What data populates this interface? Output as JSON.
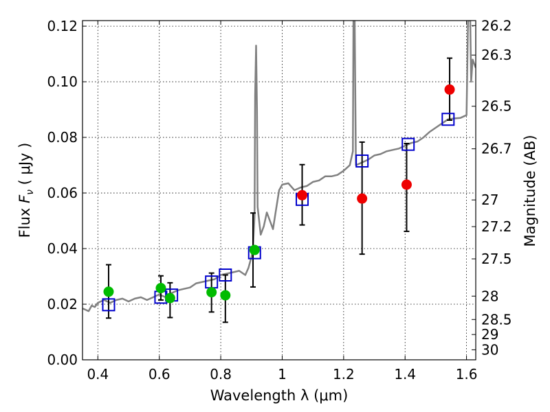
{
  "chart_data": {
    "type": "scatter",
    "xlabel": "Wavelength  λ (μm)",
    "ylabel": "Flux  Fν  ( μJy )",
    "y2label": "Magnitude (AB)",
    "xlim": [
      0.35,
      1.63
    ],
    "ylim": [
      0.0,
      0.122
    ],
    "grid": true,
    "x_ticks": [
      0.4,
      0.6,
      0.8,
      1.0,
      1.2,
      1.4,
      1.6
    ],
    "x_tick_labels": [
      "0.4",
      "0.6",
      "0.8",
      "1",
      "1.2",
      "1.4",
      "1.6"
    ],
    "y_ticks": [
      0.0,
      0.02,
      0.04,
      0.06,
      0.08,
      0.1,
      0.12
    ],
    "y_tick_labels": [
      "0.00",
      "0.02",
      "0.04",
      "0.06",
      "0.08",
      "0.10",
      "0.12"
    ],
    "y2_ticks": [
      {
        "label": "26.2",
        "flux": 0.1202
      },
      {
        "label": "26.3",
        "flux": 0.1096
      },
      {
        "label": "26.5",
        "flux": 0.0912
      },
      {
        "label": "26.7",
        "flux": 0.0759
      },
      {
        "label": "27",
        "flux": 0.0575
      },
      {
        "label": "27.2",
        "flux": 0.0479
      },
      {
        "label": "27.5",
        "flux": 0.0363
      },
      {
        "label": "28",
        "flux": 0.0229
      },
      {
        "label": "28.5",
        "flux": 0.0145
      },
      {
        "label": "29",
        "flux": 0.0091
      },
      {
        "label": "30",
        "flux": 0.0036
      }
    ],
    "series": [
      {
        "kind": "line",
        "color": "#808080",
        "points": [
          [
            0.35,
            0.0185
          ],
          [
            0.36,
            0.018
          ],
          [
            0.37,
            0.0175
          ],
          [
            0.38,
            0.0195
          ],
          [
            0.39,
            0.019
          ],
          [
            0.4,
            0.0205
          ],
          [
            0.42,
            0.0215
          ],
          [
            0.44,
            0.0205
          ],
          [
            0.46,
            0.0215
          ],
          [
            0.48,
            0.022
          ],
          [
            0.5,
            0.021
          ],
          [
            0.52,
            0.022
          ],
          [
            0.54,
            0.0225
          ],
          [
            0.56,
            0.0215
          ],
          [
            0.58,
            0.0225
          ],
          [
            0.6,
            0.0235
          ],
          [
            0.62,
            0.0225
          ],
          [
            0.64,
            0.024
          ],
          [
            0.66,
            0.025
          ],
          [
            0.68,
            0.0255
          ],
          [
            0.7,
            0.026
          ],
          [
            0.72,
            0.0275
          ],
          [
            0.74,
            0.028
          ],
          [
            0.76,
            0.0285
          ],
          [
            0.78,
            0.029
          ],
          [
            0.8,
            0.0305
          ],
          [
            0.82,
            0.031
          ],
          [
            0.84,
            0.0315
          ],
          [
            0.86,
            0.032
          ],
          [
            0.88,
            0.0305
          ],
          [
            0.89,
            0.033
          ],
          [
            0.9,
            0.037
          ],
          [
            0.905,
            0.04
          ],
          [
            0.91,
            0.052
          ],
          [
            0.912,
            0.095
          ],
          [
            0.915,
            0.113
          ],
          [
            0.918,
            0.09
          ],
          [
            0.92,
            0.055
          ],
          [
            0.93,
            0.045
          ],
          [
            0.94,
            0.048
          ],
          [
            0.95,
            0.053
          ],
          [
            0.96,
            0.05
          ],
          [
            0.97,
            0.047
          ],
          [
            0.98,
            0.054
          ],
          [
            0.99,
            0.061
          ],
          [
            1.0,
            0.063
          ],
          [
            1.02,
            0.0635
          ],
          [
            1.04,
            0.061
          ],
          [
            1.06,
            0.062
          ],
          [
            1.08,
            0.0625
          ],
          [
            1.1,
            0.064
          ],
          [
            1.12,
            0.0645
          ],
          [
            1.14,
            0.066
          ],
          [
            1.16,
            0.066
          ],
          [
            1.18,
            0.0665
          ],
          [
            1.2,
            0.068
          ],
          [
            1.22,
            0.07
          ],
          [
            1.23,
            0.075
          ],
          [
            1.232,
            0.122
          ],
          [
            1.236,
            0.122
          ],
          [
            1.24,
            0.07
          ],
          [
            1.26,
            0.071
          ],
          [
            1.28,
            0.072
          ],
          [
            1.3,
            0.0735
          ],
          [
            1.32,
            0.074
          ],
          [
            1.34,
            0.075
          ],
          [
            1.36,
            0.0755
          ],
          [
            1.38,
            0.076
          ],
          [
            1.4,
            0.077
          ],
          [
            1.42,
            0.078
          ],
          [
            1.44,
            0.0785
          ],
          [
            1.46,
            0.08
          ],
          [
            1.48,
            0.082
          ],
          [
            1.5,
            0.0835
          ],
          [
            1.52,
            0.085
          ],
          [
            1.54,
            0.0865
          ],
          [
            1.56,
            0.0868
          ],
          [
            1.58,
            0.087
          ],
          [
            1.59,
            0.0875
          ],
          [
            1.6,
            0.088
          ],
          [
            1.605,
            0.122
          ],
          [
            1.612,
            0.122
          ],
          [
            1.615,
            0.1
          ],
          [
            1.62,
            0.108
          ],
          [
            1.63,
            0.105
          ]
        ]
      },
      {
        "kind": "open-square",
        "color": "#0000cc",
        "points": [
          [
            0.435,
            0.0198
          ],
          [
            0.605,
            0.0225
          ],
          [
            0.64,
            0.0233
          ],
          [
            0.77,
            0.028
          ],
          [
            0.815,
            0.0305
          ],
          [
            0.91,
            0.0385
          ],
          [
            1.065,
            0.0577
          ],
          [
            1.26,
            0.0715
          ],
          [
            1.41,
            0.0775
          ],
          [
            1.54,
            0.0865
          ]
        ]
      },
      {
        "kind": "dot",
        "color": "#00bb00",
        "points": [
          [
            0.435,
            0.0245
          ],
          [
            0.605,
            0.0258
          ],
          [
            0.635,
            0.0222
          ],
          [
            0.77,
            0.0243
          ],
          [
            0.815,
            0.0232
          ],
          [
            0.91,
            0.0395
          ]
        ]
      },
      {
        "kind": "dot",
        "color": "#ee0000",
        "points": [
          [
            1.065,
            0.0592
          ],
          [
            1.26,
            0.058
          ],
          [
            1.405,
            0.063
          ],
          [
            1.545,
            0.0972
          ]
        ]
      }
    ],
    "error_bars": [
      {
        "x": 0.435,
        "low": 0.015,
        "high": 0.0342
      },
      {
        "x": 0.605,
        "low": 0.0215,
        "high": 0.0302
      },
      {
        "x": 0.635,
        "low": 0.0152,
        "high": 0.0277
      },
      {
        "x": 0.77,
        "low": 0.0172,
        "high": 0.0312
      },
      {
        "x": 0.815,
        "low": 0.0135,
        "high": 0.0305
      },
      {
        "x": 0.905,
        "low": 0.0262,
        "high": 0.0528
      },
      {
        "x": 1.065,
        "low": 0.0485,
        "high": 0.0702
      },
      {
        "x": 1.26,
        "low": 0.038,
        "high": 0.0783
      },
      {
        "x": 1.405,
        "low": 0.0462,
        "high": 0.0778
      },
      {
        "x": 1.545,
        "low": 0.0862,
        "high": 0.1085
      }
    ]
  }
}
